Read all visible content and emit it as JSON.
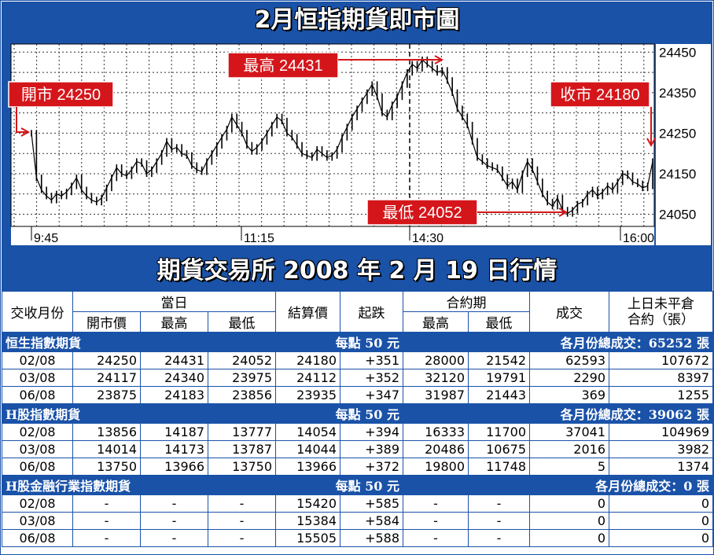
{
  "title": "2月恒指期貨即市圖",
  "subtitle": "期貨交易所 2008 年 2 月 19 日行情",
  "colors": {
    "panel": "#1a52a8",
    "callout": "#d4161b",
    "candle": "#000000",
    "grid": "#333333"
  },
  "chart_data": {
    "type": "line",
    "y_ticks": [
      "24450",
      "24350",
      "24250",
      "24150",
      "24050"
    ],
    "ylim": [
      24020,
      24470
    ],
    "x_ticks": [
      "9:45",
      "11:15",
      "14:30",
      "16:00"
    ],
    "annotations": {
      "open": {
        "label": "開市 24250",
        "value": 24250
      },
      "high": {
        "label": "最高 24431",
        "value": 24431
      },
      "close": {
        "label": "收市 24180",
        "value": 24180
      },
      "low": {
        "label": "最低 24052",
        "value": 24052
      }
    },
    "series": [
      {
        "values": [
          24250,
          24140,
          24110,
          24095,
          24085,
          24100,
          24095,
          24105,
          24120,
          24140,
          24110,
          24095,
          24085,
          24080,
          24090,
          24115,
          24140,
          24165,
          24150,
          24145,
          24160,
          24180,
          24175,
          24150,
          24160,
          24180,
          24200,
          24230,
          24210,
          24215,
          24200,
          24195,
          24170,
          24160,
          24155,
          24180,
          24200,
          24220,
          24240,
          24260,
          24290,
          24270,
          24250,
          24220,
          24205,
          24215,
          24230,
          24250,
          24270,
          24290,
          24280,
          24250,
          24240,
          24220,
          24200,
          24195,
          24190,
          24210,
          24200,
          24190,
          24195,
          24210,
          24240,
          24265,
          24290,
          24310,
          24330,
          24350,
          24370,
          24340,
          24300,
          24290,
          24320,
          24340,
          24370,
          24400,
          24420,
          24410,
          24431,
          24420,
          24410,
          24400,
          24405,
          24380,
          24350,
          24310,
          24290,
          24270,
          24230,
          24190,
          24180,
          24170,
          24165,
          24160,
          24140,
          24120,
          24130,
          24110,
          24150,
          24180,
          24160,
          24130,
          24100,
          24080,
          24070,
          24090,
          24060,
          24052,
          24060,
          24075,
          24080,
          24100,
          24110,
          24095,
          24105,
          24120,
          24110,
          24130,
          24150,
          24145,
          24130,
          24125,
          24115,
          24120,
          24180
        ]
      }
    ]
  },
  "table": {
    "head1": [
      "交收月份",
      "當日",
      "結算價",
      "起跌",
      "合約期",
      "成交",
      "上日未平倉"
    ],
    "head1_line2": "合約（張）",
    "head2": [
      "開市價",
      "最高",
      "最低",
      "最高",
      "最低"
    ],
    "sections": [
      {
        "name": "恒生指數期貨",
        "unit": "每點 50 元",
        "total": "各月份總成交：65252 張",
        "rows": [
          [
            "02/08",
            "24250",
            "24431",
            "24052",
            "24180",
            "+351",
            "28000",
            "21542",
            "62593",
            "107672"
          ],
          [
            "03/08",
            "24117",
            "24340",
            "23975",
            "24112",
            "+352",
            "32120",
            "19791",
            "2290",
            "8397"
          ],
          [
            "06/08",
            "23875",
            "24183",
            "23856",
            "23935",
            "+347",
            "31987",
            "21443",
            "369",
            "1255"
          ]
        ]
      },
      {
        "name": "H股指數期貨",
        "unit": "每點 50 元",
        "total": "各月份總成交：39062 張",
        "rows": [
          [
            "02/08",
            "13856",
            "14187",
            "13777",
            "14054",
            "+394",
            "16333",
            "11700",
            "37041",
            "104969"
          ],
          [
            "03/08",
            "14014",
            "14173",
            "13787",
            "14044",
            "+389",
            "20486",
            "10675",
            "2016",
            "3982"
          ],
          [
            "06/08",
            "13750",
            "13966",
            "13750",
            "13966",
            "+372",
            "19800",
            "11748",
            "5",
            "1374"
          ]
        ]
      },
      {
        "name": "H股金融行業指數期貨",
        "unit": "每點 50 元",
        "total": "各月份總成交：0 張",
        "rows": [
          [
            "02/08",
            "-",
            "-",
            "-",
            "15420",
            "+585",
            "-",
            "-",
            "0",
            "0"
          ],
          [
            "03/08",
            "-",
            "-",
            "-",
            "15384",
            "+584",
            "-",
            "-",
            "0",
            "0"
          ],
          [
            "06/08",
            "-",
            "-",
            "-",
            "15505",
            "+588",
            "-",
            "-",
            "0",
            "0"
          ]
        ]
      }
    ]
  }
}
